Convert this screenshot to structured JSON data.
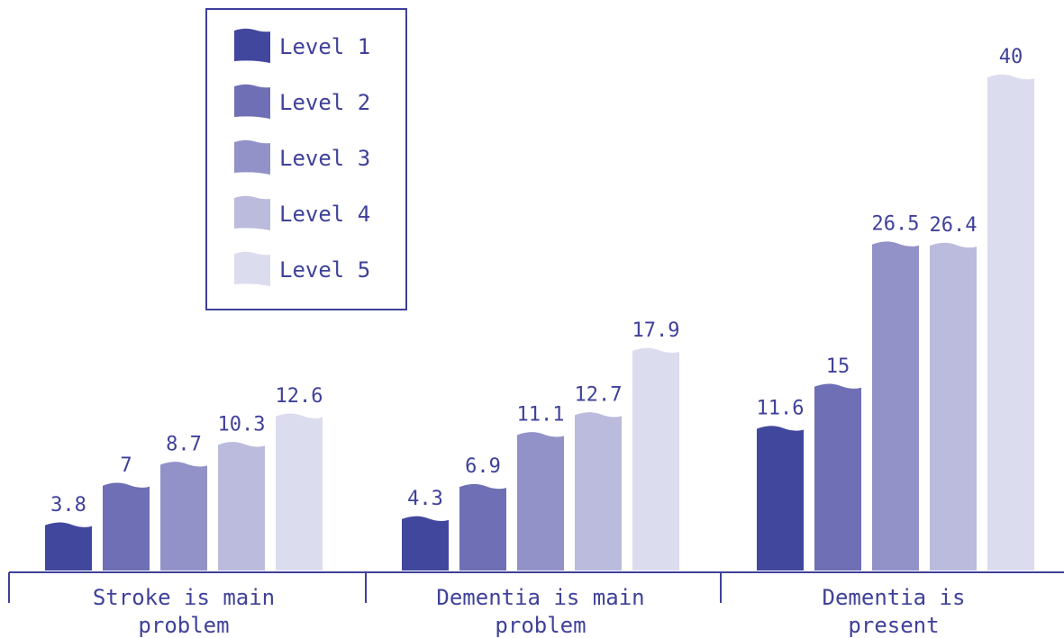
{
  "chart_data": {
    "type": "bar",
    "categories": [
      [
        "Stroke is main",
        "problem"
      ],
      [
        "Dementia is main",
        "problem"
      ],
      [
        "Dementia is",
        "present"
      ]
    ],
    "series": [
      {
        "name": "Level 1",
        "color": "#42479e",
        "values": [
          3.8,
          4.3,
          11.6
        ]
      },
      {
        "name": "Level 2",
        "color": "#6f6fb5",
        "values": [
          7,
          6.9,
          15
        ]
      },
      {
        "name": "Level 3",
        "color": "#9392c8",
        "values": [
          8.7,
          11.1,
          26.5
        ]
      },
      {
        "name": "Level 4",
        "color": "#bbbbdd",
        "values": [
          10.3,
          12.7,
          26.4
        ]
      },
      {
        "name": "Level 5",
        "color": "#dcdcef",
        "values": [
          12.6,
          17.9,
          40
        ]
      }
    ],
    "value_labels": [
      [
        "3.8",
        "4.3",
        "11.6"
      ],
      [
        "7",
        "6.9",
        "15"
      ],
      [
        "8.7",
        "11.1",
        "26.5"
      ],
      [
        "10.3",
        "12.7",
        "26.4"
      ],
      [
        "12.6",
        "17.9",
        "40"
      ]
    ],
    "title": "",
    "xlabel": "",
    "ylabel": "",
    "ylim": [
      0,
      40
    ],
    "legend_position": "top-left",
    "grid": false,
    "axis_color": "#3f4199",
    "text_color": "#3f4199"
  }
}
